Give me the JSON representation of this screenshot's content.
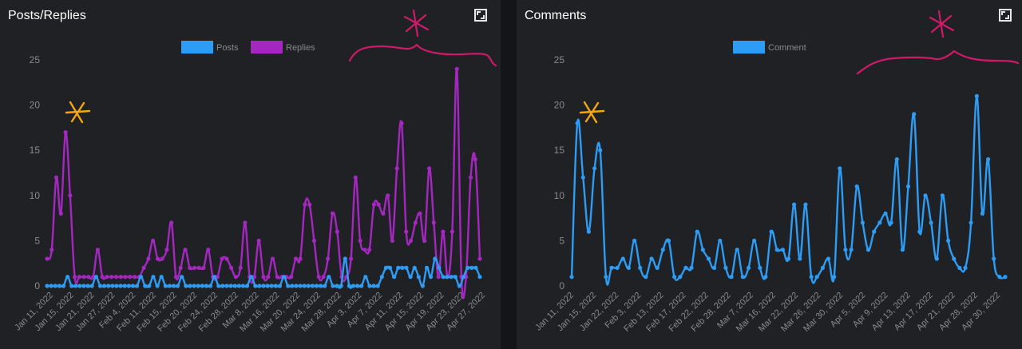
{
  "colors": {
    "background": "#202125",
    "posts": "#2d9cf4",
    "replies": "#a428c0",
    "comment": "#2d9cf4",
    "annotation_orange": "#f5a70f",
    "annotation_magenta": "#cf1a6a"
  },
  "panels": {
    "left": {
      "title": "Posts/Replies",
      "expand_icon": "expand-icon"
    },
    "right": {
      "title": "Comments",
      "expand_icon": "expand-icon"
    }
  },
  "chart_data": [
    {
      "type": "line",
      "title": "Posts/Replies",
      "xlabel": "",
      "ylabel": "",
      "ylim": [
        0,
        25
      ],
      "yticks": [
        0,
        5,
        10,
        15,
        20,
        25
      ],
      "grid": false,
      "legend": "top-center",
      "x_tick_labels": [
        "Jan 11, 2022",
        "Jan 15, 2022",
        "Jan 21, 2022",
        "Jan 27, 2022",
        "Feb 4, 2022",
        "Feb 11, 2022",
        "Feb 15, 2022",
        "Feb 20, 2022",
        "Feb 24, 2022",
        "Feb 28, 2022",
        "Mar 8, 2022",
        "Mar 16, 2022",
        "Mar 20, 2022",
        "Mar 24, 2022",
        "Mar 28, 2022",
        "Apr 3, 2022",
        "Apr 7, 2022",
        "Apr 11, 2022",
        "Apr 15, 2022",
        "Apr 19, 2022",
        "Apr 23, 2022",
        "Apr 27, 2022"
      ],
      "series": [
        {
          "name": "Posts",
          "color": "#2d9cf4",
          "values": [
            0,
            0,
            0,
            0,
            0,
            1,
            0,
            0,
            0,
            0,
            0,
            0,
            1,
            0,
            0,
            0,
            0,
            0,
            0,
            0,
            0,
            0,
            0,
            1,
            0,
            0,
            1,
            0,
            1,
            0,
            0,
            0,
            0,
            1,
            0,
            0,
            0,
            0,
            0,
            0,
            0,
            1,
            0,
            0,
            0,
            0,
            0,
            0,
            0,
            0,
            1,
            0,
            0,
            0,
            0,
            0,
            0,
            0,
            1,
            0,
            0,
            0,
            0,
            0,
            0,
            0,
            0,
            0,
            0,
            1,
            0,
            0,
            0,
            3,
            0,
            0,
            0,
            0,
            1,
            0,
            0,
            0,
            1,
            2,
            2,
            1,
            2,
            2,
            2,
            1,
            2,
            1,
            0,
            2,
            1,
            3,
            2,
            1,
            1,
            1,
            1,
            0,
            1,
            2,
            2,
            2,
            1
          ]
        },
        {
          "name": "Replies",
          "color": "#a428c0",
          "values": [
            3,
            4,
            12,
            8,
            17,
            10,
            1,
            1,
            1,
            1,
            1,
            4,
            1,
            1,
            1,
            1,
            1,
            1,
            1,
            1,
            1,
            2,
            3,
            5,
            3,
            3,
            4,
            7,
            1,
            2,
            4,
            2,
            2,
            2,
            2,
            4,
            1,
            1,
            3,
            3,
            2,
            1,
            2,
            7,
            1,
            1,
            5,
            1,
            1,
            3,
            1,
            1,
            1,
            1,
            3,
            3,
            9,
            9,
            5,
            1,
            1,
            3,
            8,
            6,
            1,
            1,
            3,
            12,
            5,
            4,
            4,
            9,
            9,
            8,
            10,
            5,
            13,
            18,
            6,
            5,
            7,
            8,
            5,
            13,
            7,
            1,
            6,
            1,
            6,
            24,
            1,
            1,
            12,
            14,
            3
          ]
        }
      ]
    },
    {
      "type": "line",
      "title": "Comments",
      "xlabel": "",
      "ylabel": "",
      "ylim": [
        0,
        25
      ],
      "yticks": [
        0,
        5,
        10,
        15,
        20,
        25
      ],
      "grid": false,
      "legend": "top-center",
      "x_tick_labels": [
        "Jan 11, 2022",
        "Jan 15, 2022",
        "Jan 22, 2022",
        "Feb 3, 2022",
        "Feb 13, 2022",
        "Feb 17, 2022",
        "Feb 22, 2022",
        "Feb 28, 2022",
        "Mar 7, 2022",
        "Mar 16, 2022",
        "Mar 22, 2022",
        "Mar 26, 2022",
        "Mar 30, 2022",
        "Apr 5, 2022",
        "Apr 9, 2022",
        "Apr 13, 2022",
        "Apr 17, 2022",
        "Apr 21, 2022",
        "Apr 28, 2022",
        "Apr 30, 2022"
      ],
      "series": [
        {
          "name": "Comment",
          "color": "#2d9cf4",
          "values": [
            1,
            18,
            12,
            6,
            13,
            15,
            1,
            2,
            2,
            3,
            2,
            5,
            2,
            1,
            3,
            2,
            4,
            5,
            1,
            1,
            2,
            2,
            6,
            4,
            3,
            2,
            5,
            2,
            1,
            4,
            1,
            2,
            5,
            2,
            1,
            6,
            4,
            4,
            3,
            9,
            3,
            9,
            1,
            1,
            2,
            3,
            1,
            13,
            4,
            4,
            11,
            7,
            4,
            6,
            7,
            8,
            7,
            14,
            4,
            11,
            19,
            6,
            10,
            7,
            3,
            10,
            5,
            3,
            2,
            2,
            7,
            21,
            8,
            14,
            3,
            1,
            1
          ]
        }
      ]
    }
  ]
}
